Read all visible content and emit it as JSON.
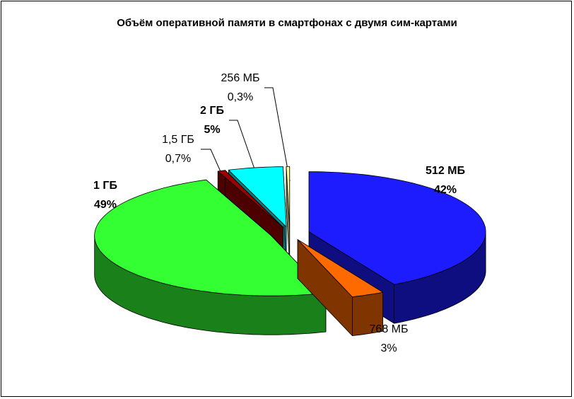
{
  "chart_data": {
    "type": "pie",
    "title": "Объём оперативной памяти в смартфонах с двумя сим-картами",
    "categories": [
      "512 МБ",
      "768 МБ",
      "1 ГБ",
      "1,5 ГБ",
      "2 ГБ",
      "256 МБ"
    ],
    "values": [
      42,
      3,
      49,
      0.7,
      5,
      0.3
    ],
    "value_labels": [
      "42%",
      "3%",
      "49%",
      "0,7%",
      "5%",
      "0,3%"
    ],
    "colors": [
      "#1c1cff",
      "#ff6a00",
      "#33ff33",
      "#990000",
      "#00ffff",
      "#ffff99"
    ]
  }
}
